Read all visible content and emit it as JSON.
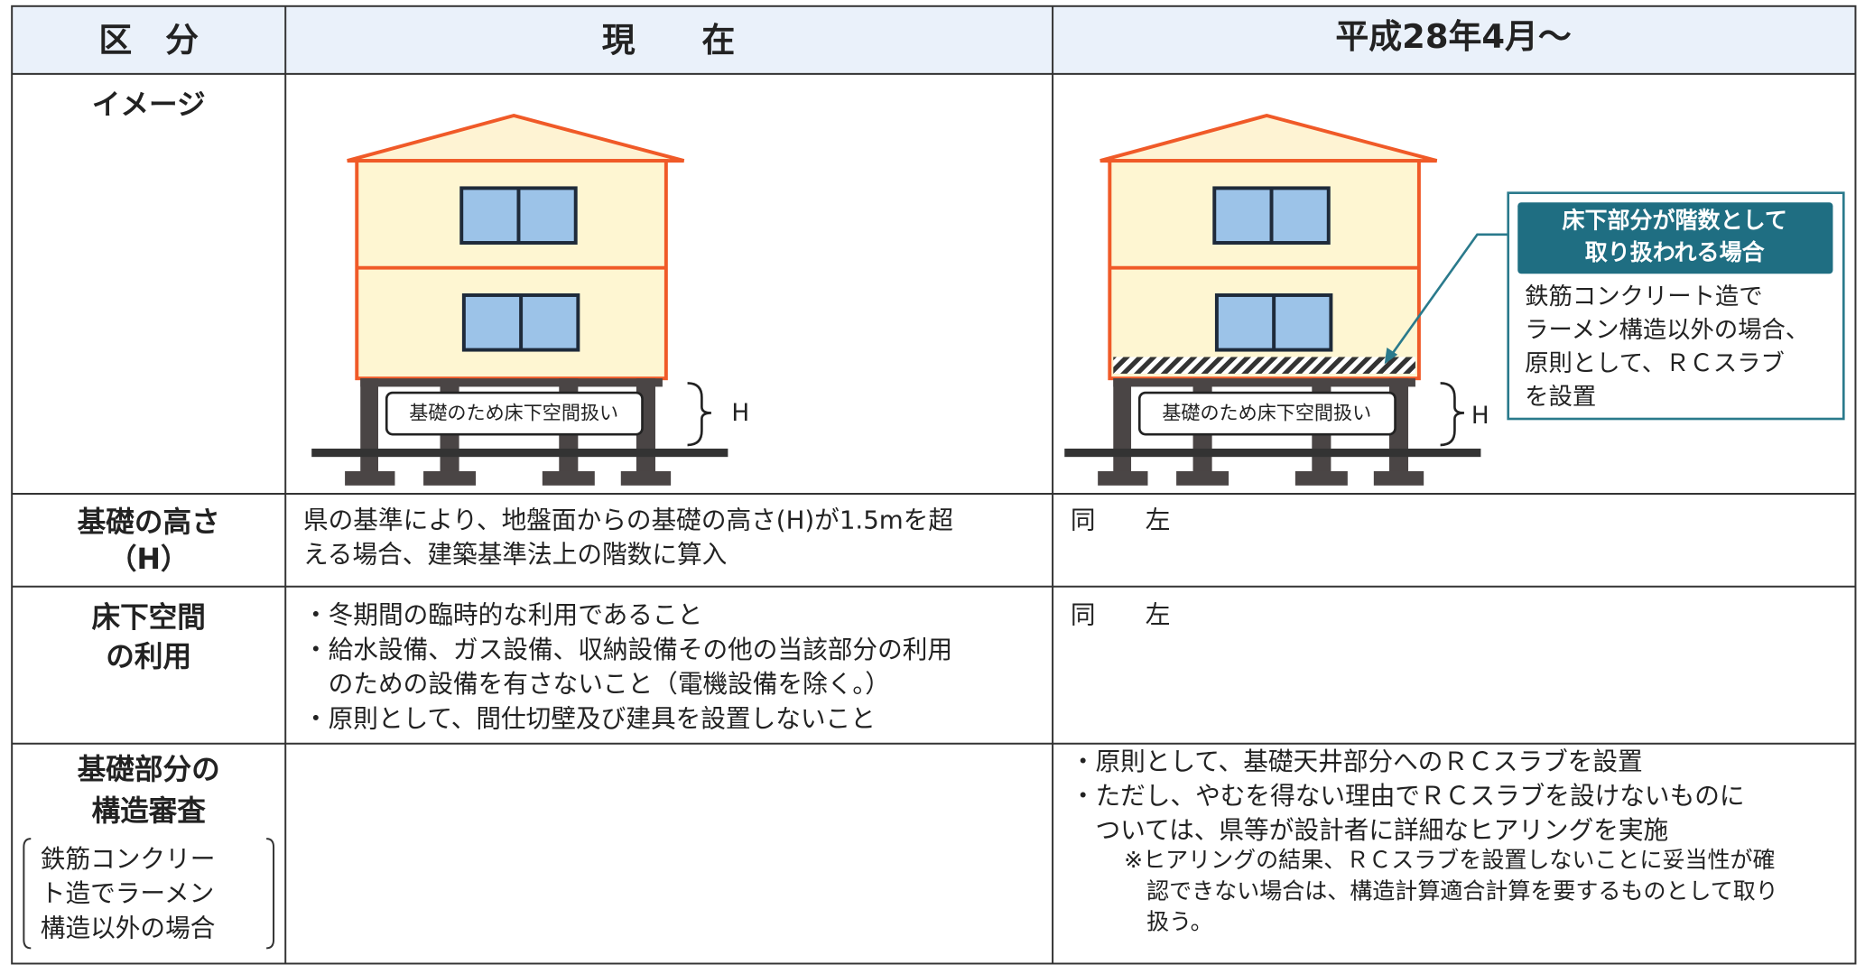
{
  "table": {
    "header": [
      "区　分",
      "現　　在",
      "平成28年4月～"
    ],
    "rows": [
      {
        "label": [
          "イメージ"
        ]
      },
      {
        "label": [
          "基礎の高さ",
          "（H）"
        ],
        "current": [
          "県の基準により、地盤面からの基礎の高さ(H)が1.5mを超",
          "える場合、建築基準法上の階数に算入"
        ],
        "future": [
          "同　　左"
        ]
      },
      {
        "label": [
          "床下空間",
          "の利用"
        ],
        "current": [
          "・冬期間の臨時的な利用であること",
          "・給水設備、ガス設備、収納設備その他の当該部分の利用",
          "　のための設備を有さないこと（電機設備を除く。）",
          "・原則として、間仕切壁及び建具を設置しないこと"
        ],
        "future": [
          "同　　左"
        ]
      },
      {
        "label": [
          "基礎部分の",
          "構造審査"
        ],
        "note": [
          "鉄筋コンクリー",
          "ト造でラーメン",
          "構造以外の場合"
        ],
        "future": [
          "・原則として、基礎天井部分へのＲＣスラブを設置",
          "・ただし、やむを得ない理由でＲＣスラブを設けないものに",
          "　ついては、県等が設計者に詳細なヒアリングを実施"
        ],
        "future_note": [
          "※ヒアリングの結果、ＲＣスラブを設置しないことに妥当性が確",
          "　認できない場合は、構造計算適合計算を要するものとして取り",
          "　扱う。"
        ]
      }
    ]
  },
  "images": {
    "current": {
      "label": "基礎のため床下空間扱い",
      "height_mark": "H"
    },
    "future": {
      "label": "基礎のため床下空間扱い",
      "height_mark": "H",
      "callout_title": [
        "床下部分が階数として",
        "取り扱われる場合"
      ],
      "callout_text": [
        "鉄筋コンクリート造で",
        "ラーメン構造以外の場合、",
        "原則として、ＲＣスラブ",
        "を設置"
      ]
    }
  }
}
